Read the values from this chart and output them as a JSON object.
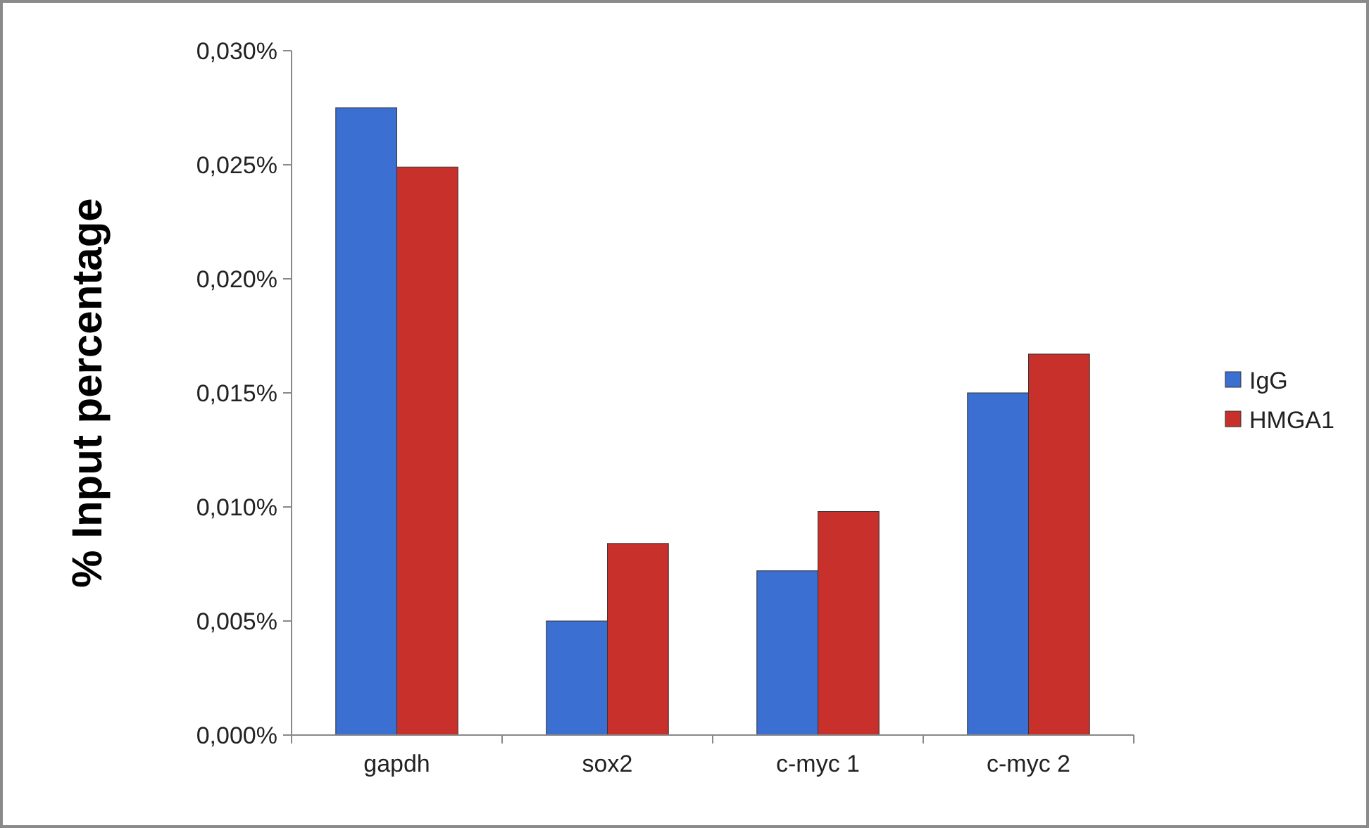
{
  "chart_data": {
    "type": "bar",
    "ylabel": "% Input percentage",
    "categories": [
      "gapdh",
      "sox2",
      "c-myc 1",
      "c-myc 2"
    ],
    "series": [
      {
        "name": "IgG",
        "color": "#3b6fd1",
        "values": [
          0.0275,
          0.005,
          0.0072,
          0.015
        ]
      },
      {
        "name": "HMGA1",
        "color": "#c8302b",
        "values": [
          0.0249,
          0.0084,
          0.0098,
          0.0167
        ]
      }
    ],
    "ylim": [
      0,
      0.03
    ],
    "yticks": [
      {
        "value": 0,
        "label": "0,000%"
      },
      {
        "value": 0.005,
        "label": "0,005%"
      },
      {
        "value": 0.01,
        "label": "0,010%"
      },
      {
        "value": 0.015,
        "label": "0,015%"
      },
      {
        "value": 0.02,
        "label": "0,020%"
      },
      {
        "value": 0.025,
        "label": "0,025%"
      },
      {
        "value": 0.03,
        "label": "0,030%"
      }
    ],
    "grid": false,
    "legend": "right"
  }
}
